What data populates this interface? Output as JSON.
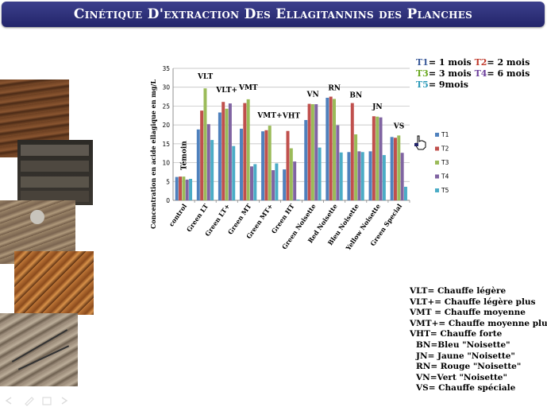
{
  "slide": {
    "title": "Cinétique D'extraction Des Ellagitannins des Planches"
  },
  "time_legend": {
    "line1": [
      {
        "text": "T1",
        "color": "#3a5a9a"
      },
      {
        "text": "= 1 mois ",
        "color": "#1f1f1f"
      },
      {
        "text": "T2",
        "color": "#c0392b"
      },
      {
        "text": "= 2 mois",
        "color": "#1f1f1f"
      }
    ],
    "line2": [
      {
        "text": "T3",
        "color": "#6aa820"
      },
      {
        "text": "= 3 mois ",
        "color": "#1f1f1f"
      },
      {
        "text": "T4",
        "color": "#6a3d9a"
      },
      {
        "text": "= 6 mois",
        "color": "#1f1f1f"
      }
    ],
    "line3": [
      {
        "text": "T5",
        "color": "#2b9ab8"
      },
      {
        "text": "= 9mois",
        "color": "#1f1f1f"
      }
    ]
  },
  "abbreviations": [
    "VLT= Chauffe légère",
    "VLT+= Chauffe légère plus",
    "VMT = Chauffe moyenne",
    "VMT+= Chauffe moyenne plus",
    "VHT= Chauffe forte",
    "BN=Bleu \"Noisette\"",
    "JN= Jaune \"Noisette\"",
    "RN= Rouge \"Noisette\"",
    "VN=Vert \"Noisette\"",
    "VS= Chauffe spéciale"
  ],
  "chart_data": {
    "type": "bar",
    "title": "",
    "xlabel": "",
    "ylabel": "Concentration en acide ellagique en mg/L",
    "ylim": [
      0,
      35
    ],
    "yticks": [
      0,
      5,
      10,
      15,
      20,
      25,
      30,
      35
    ],
    "grid": true,
    "legend_position": "right",
    "categories": [
      "control",
      "Green LT",
      "Green LT+",
      "Green MT",
      "Green MT+",
      "Green HT",
      "Green Noisette",
      "Red Noisette",
      "Bleu Noisette",
      "Yellow Noisette",
      "Green Special"
    ],
    "series": [
      {
        "name": "T1",
        "color": "#4f81bd",
        "values": [
          6.2,
          18.8,
          23.3,
          19.0,
          18.3,
          8.2,
          21.3,
          27.2,
          12.8,
          13.0,
          16.8
        ]
      },
      {
        "name": "T2",
        "color": "#c0504d",
        "values": [
          6.3,
          23.8,
          26.1,
          25.8,
          18.6,
          18.4,
          25.6,
          27.5,
          25.8,
          22.3,
          16.6
        ]
      },
      {
        "name": "T3",
        "color": "#9bbb59",
        "values": [
          6.3,
          29.7,
          24.3,
          26.8,
          19.8,
          13.8,
          25.5,
          26.9,
          17.5,
          22.2,
          17.2
        ]
      },
      {
        "name": "T4",
        "color": "#8064a2",
        "values": [
          5.5,
          20.2,
          25.7,
          9.0,
          8.0,
          10.3,
          25.5,
          19.9,
          13.0,
          22.0,
          12.6
        ]
      },
      {
        "name": "T5",
        "color": "#4bacc6",
        "values": [
          5.7,
          16.0,
          14.4,
          9.6,
          9.8,
          0.2,
          14.0,
          12.7,
          12.8,
          12.0,
          3.6
        ]
      }
    ],
    "annotations": [
      "Témoin",
      "VLT",
      "VLT+",
      "VMT",
      "VMT+",
      "VHT",
      "VN",
      "RN",
      "BN",
      "JN",
      "VS"
    ]
  }
}
